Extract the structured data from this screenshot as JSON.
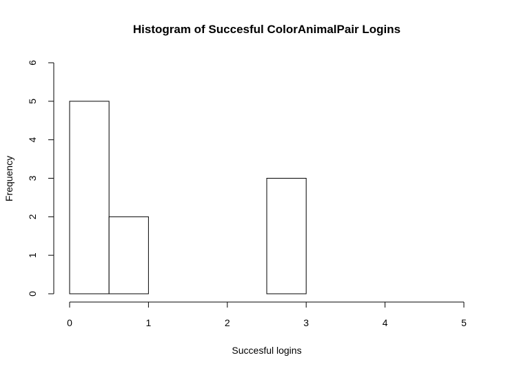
{
  "chart_data": {
    "type": "bar",
    "subtype": "histogram",
    "title": "Histogram of Succesful ColorAnimalPair Logins",
    "xlabel": "Succesful logins",
    "ylabel": "Frequency",
    "bins": [
      {
        "start": 0.0,
        "end": 0.5,
        "count": 5
      },
      {
        "start": 0.5,
        "end": 1.0,
        "count": 2
      },
      {
        "start": 1.0,
        "end": 1.5,
        "count": 0
      },
      {
        "start": 1.5,
        "end": 2.0,
        "count": 0
      },
      {
        "start": 2.0,
        "end": 2.5,
        "count": 0
      },
      {
        "start": 2.5,
        "end": 3.0,
        "count": 3
      }
    ],
    "xlim": [
      0,
      5
    ],
    "ylim": [
      0,
      6
    ],
    "xticks": [
      0,
      1,
      2,
      3,
      4,
      5
    ],
    "yticks": [
      0,
      1,
      2,
      3,
      4,
      5,
      6
    ],
    "grid": false,
    "legend": "none",
    "colors": {
      "bar_fill": "#ffffff",
      "bar_stroke": "#000000"
    }
  }
}
